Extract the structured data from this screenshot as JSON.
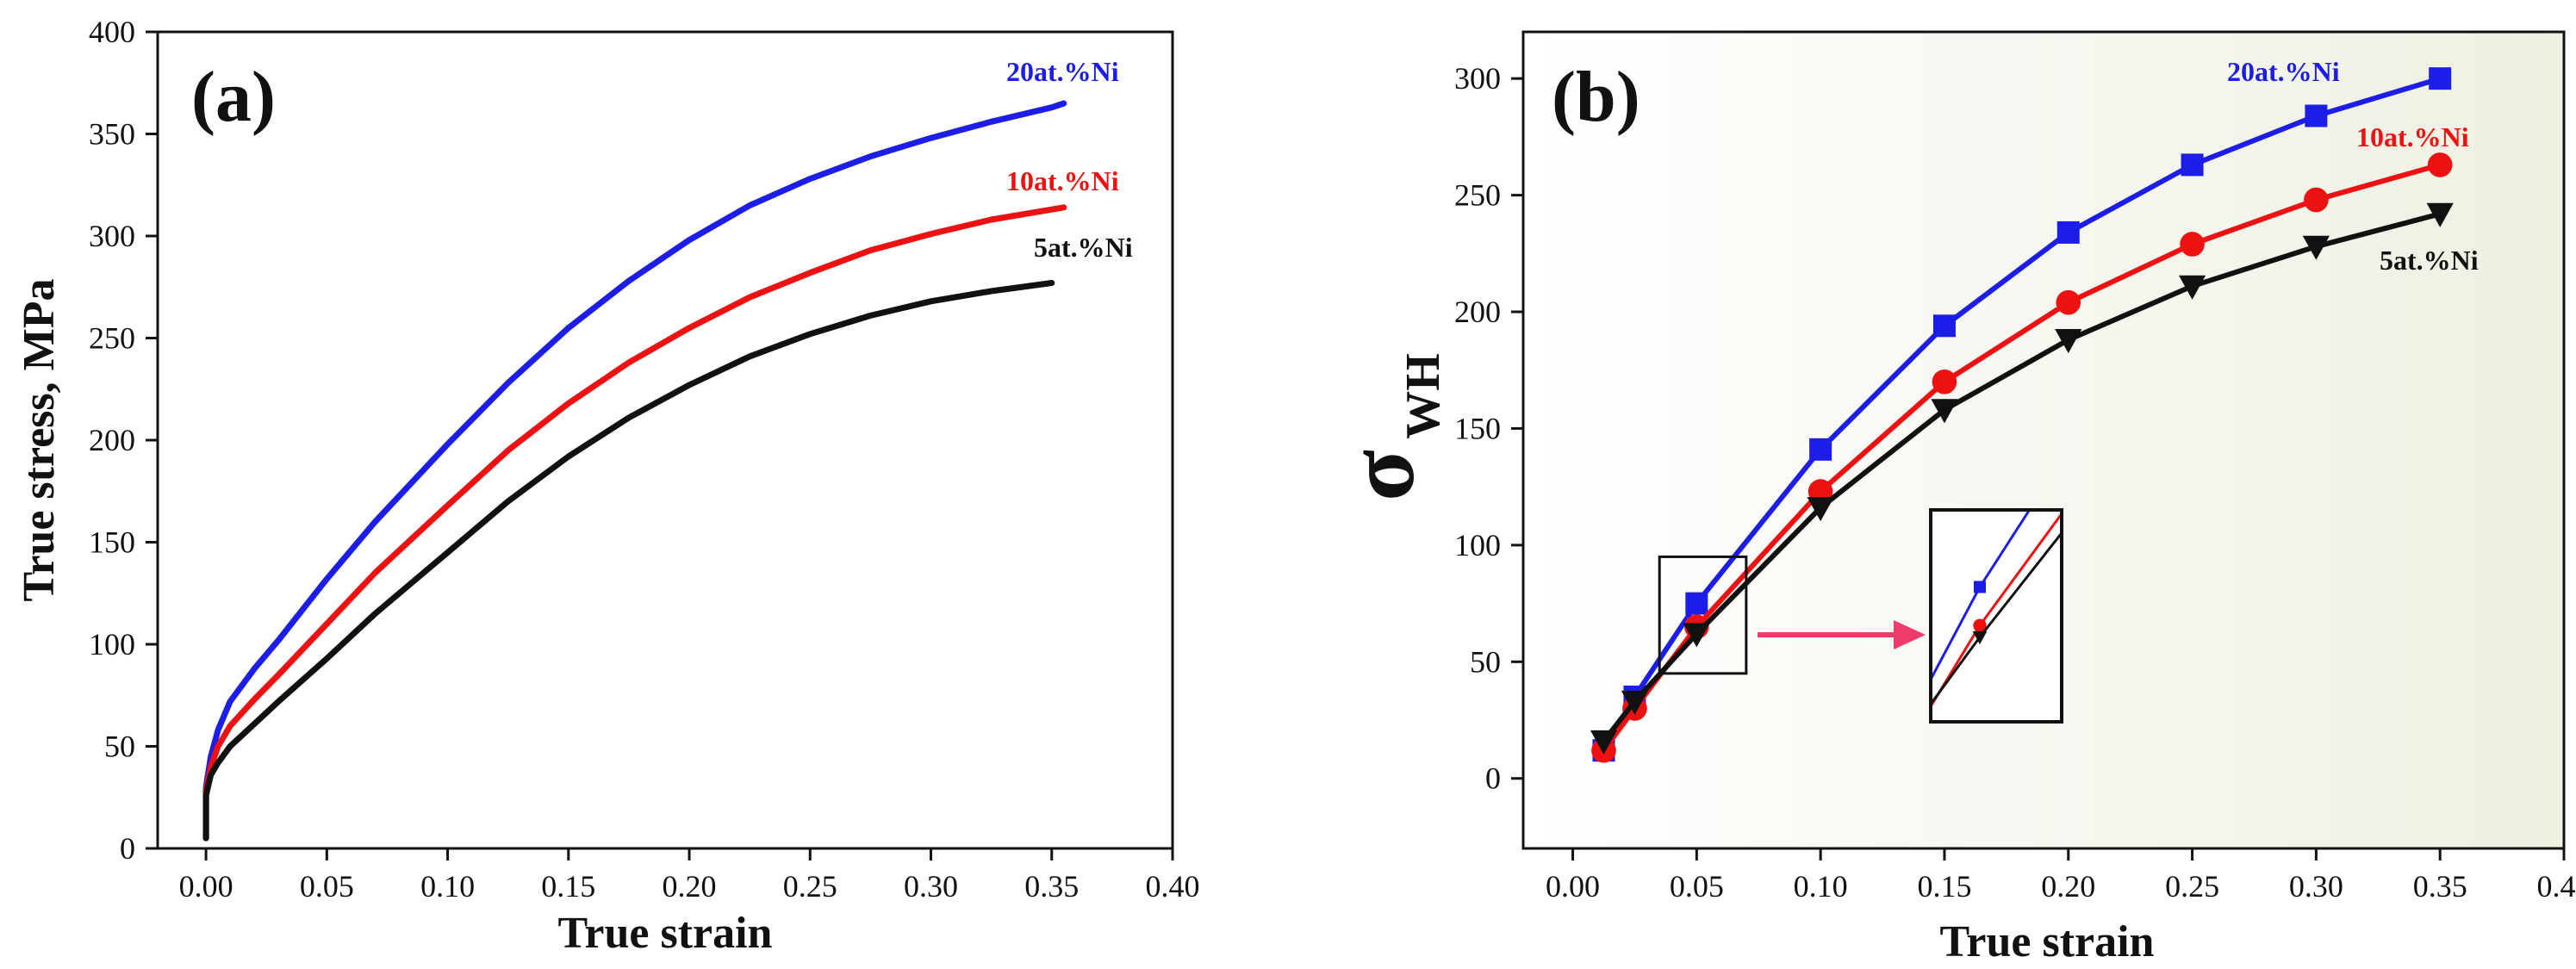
{
  "colors": {
    "blue": "#1d1de8",
    "red": "#ee1111",
    "black": "#111111",
    "arrow": "#ee3b6b",
    "panel_b_bg_left": "#ffffff",
    "panel_b_bg_right": "#eef0e2"
  },
  "chart_data": [
    {
      "type": "line",
      "panel_label": "(a)",
      "xlabel": "True strain",
      "ylabel": "True stress, MPa",
      "xlim": [
        -0.02,
        0.4
      ],
      "ylim": [
        0,
        400
      ],
      "xticks": [
        "0.00",
        "0.05",
        "0.10",
        "0.15",
        "0.20",
        "0.25",
        "0.30",
        "0.35",
        "0.40"
      ],
      "yticks": [
        "0",
        "50",
        "100",
        "150",
        "200",
        "250",
        "300",
        "350",
        "400"
      ],
      "series": [
        {
          "name": "20at.%Ni",
          "color_key": "blue",
          "x": [
            0.0,
            0.0,
            0.002,
            0.005,
            0.01,
            0.02,
            0.03,
            0.05,
            0.07,
            0.1,
            0.125,
            0.15,
            0.175,
            0.2,
            0.225,
            0.25,
            0.275,
            0.3,
            0.325,
            0.35,
            0.355
          ],
          "y": [
            5,
            30,
            45,
            58,
            72,
            88,
            102,
            132,
            160,
            198,
            228,
            255,
            278,
            298,
            315,
            328,
            339,
            348,
            356,
            363,
            365
          ]
        },
        {
          "name": "10at.%Ni",
          "color_key": "red",
          "x": [
            0.0,
            0.0,
            0.002,
            0.005,
            0.01,
            0.02,
            0.03,
            0.05,
            0.07,
            0.1,
            0.125,
            0.15,
            0.175,
            0.2,
            0.225,
            0.25,
            0.275,
            0.3,
            0.325,
            0.35,
            0.355
          ],
          "y": [
            5,
            28,
            40,
            50,
            60,
            73,
            85,
            110,
            135,
            168,
            195,
            218,
            238,
            255,
            270,
            282,
            293,
            301,
            308,
            313,
            314
          ]
        },
        {
          "name": "5at.%Ni",
          "color_key": "black",
          "x": [
            0.0,
            0.0,
            0.002,
            0.005,
            0.01,
            0.02,
            0.03,
            0.05,
            0.07,
            0.1,
            0.125,
            0.15,
            0.175,
            0.2,
            0.225,
            0.25,
            0.275,
            0.3,
            0.325,
            0.35
          ],
          "y": [
            5,
            26,
            36,
            42,
            50,
            61,
            72,
            93,
            115,
            145,
            170,
            192,
            211,
            227,
            241,
            252,
            261,
            268,
            273,
            277
          ]
        }
      ]
    },
    {
      "type": "line",
      "panel_label": "(b)",
      "xlabel": "True strain",
      "ylabel": "σ",
      "ylabel_sub": "WH",
      "xlim": [
        -0.02,
        0.4
      ],
      "ylim": [
        -30,
        320
      ],
      "xticks": [
        "0.00",
        "0.05",
        "0.10",
        "0.15",
        "0.20",
        "0.25",
        "0.30",
        "0.35",
        "0.40"
      ],
      "yticks": [
        "0",
        "50",
        "100",
        "150",
        "200",
        "250",
        "300"
      ],
      "inset_region": {
        "x": [
          0.035,
          0.07
        ],
        "y": [
          45,
          95
        ]
      },
      "series": [
        {
          "name": "20at.%Ni",
          "color_key": "blue",
          "marker": "square",
          "x": [
            0.0125,
            0.025,
            0.05,
            0.1,
            0.15,
            0.2,
            0.25,
            0.3,
            0.35
          ],
          "y": [
            12,
            35,
            75,
            141,
            194,
            234,
            263,
            284,
            300
          ]
        },
        {
          "name": "10at.%Ni",
          "color_key": "red",
          "marker": "circle",
          "x": [
            0.0125,
            0.025,
            0.05,
            0.1,
            0.15,
            0.2,
            0.25,
            0.3,
            0.35
          ],
          "y": [
            12,
            30,
            65,
            123,
            170,
            204,
            229,
            248,
            263
          ]
        },
        {
          "name": "5at.%Ni",
          "color_key": "black",
          "marker": "triangle-down",
          "x": [
            0.0125,
            0.025,
            0.05,
            0.1,
            0.15,
            0.2,
            0.25,
            0.3,
            0.35
          ],
          "y": [
            16,
            33,
            62,
            116,
            158,
            188,
            211,
            228,
            242
          ]
        }
      ]
    }
  ]
}
